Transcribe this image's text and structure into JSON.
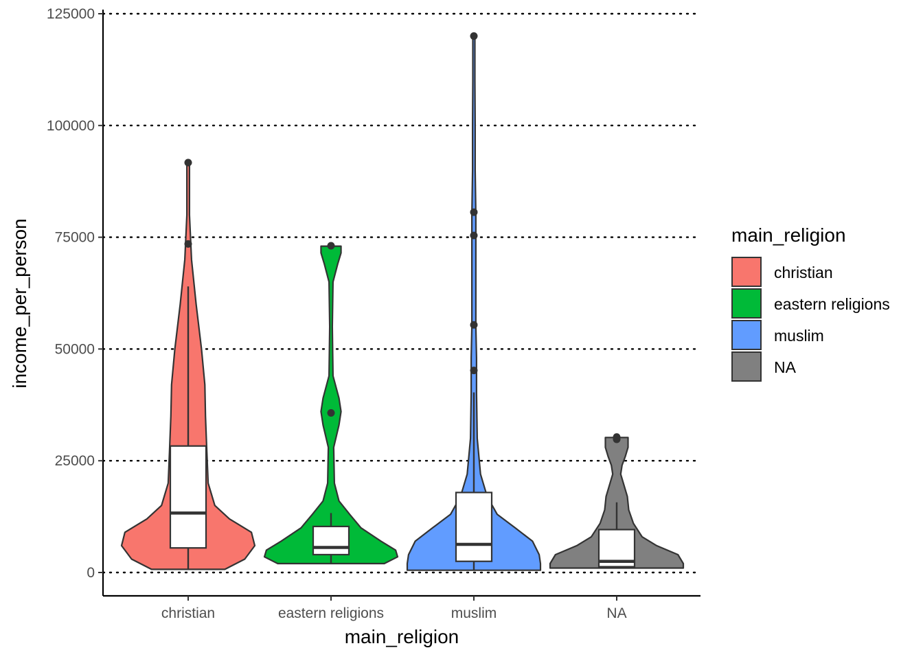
{
  "chart_data": {
    "type": "violin",
    "xlabel": "main_religion",
    "ylabel": "income_per_person",
    "ylim": [
      -5500,
      125000
    ],
    "yticks": [
      0,
      25000,
      50000,
      75000,
      100000,
      125000
    ],
    "ytick_labels": [
      "0",
      "25000",
      "50000",
      "75000",
      "100000",
      "125000"
    ],
    "grid": "horizontal dotted",
    "categories": [
      "christian",
      "eastern religions",
      "muslim",
      "NA"
    ],
    "colors": [
      "#F8766D",
      "#00BA38",
      "#619CFF",
      "#808080"
    ],
    "legend": {
      "title": "main_religion",
      "position": "right",
      "entries": [
        "christian",
        "eastern religions",
        "muslim",
        "NA"
      ]
    },
    "series": [
      {
        "name": "christian",
        "violin_profile": [
          [
            700,
            0.55
          ],
          [
            3000,
            0.85
          ],
          [
            6000,
            1.0
          ],
          [
            9000,
            0.95
          ],
          [
            12000,
            0.62
          ],
          [
            15000,
            0.4
          ],
          [
            20000,
            0.3
          ],
          [
            27000,
            0.28
          ],
          [
            35000,
            0.26
          ],
          [
            42000,
            0.25
          ],
          [
            50000,
            0.2
          ],
          [
            60000,
            0.12
          ],
          [
            70000,
            0.05
          ],
          [
            80000,
            0.02
          ],
          [
            91700,
            0.02
          ]
        ],
        "box": {
          "q1": 5500,
          "median": 13300,
          "q3": 28300,
          "whisker_low": 700,
          "whisker_high": 64000
        },
        "outliers": [
          73500,
          91700
        ]
      },
      {
        "name": "eastern religions",
        "violin_profile": [
          [
            2000,
            0.8
          ],
          [
            3500,
            1.0
          ],
          [
            5000,
            0.97
          ],
          [
            7000,
            0.75
          ],
          [
            10000,
            0.45
          ],
          [
            13000,
            0.28
          ],
          [
            16000,
            0.12
          ],
          [
            20000,
            0.05
          ],
          [
            28000,
            0.04
          ],
          [
            33000,
            0.12
          ],
          [
            36000,
            0.15
          ],
          [
            39000,
            0.12
          ],
          [
            44000,
            0.03
          ],
          [
            55000,
            0.02
          ],
          [
            65000,
            0.03
          ],
          [
            69000,
            0.1
          ],
          [
            71500,
            0.15
          ],
          [
            73000,
            0.15
          ]
        ],
        "box": {
          "q1": 4000,
          "median": 5600,
          "q3": 10300,
          "whisker_low": 2000,
          "whisker_high": 13300
        },
        "outliers": [
          35700,
          73100
        ]
      },
      {
        "name": "muslim",
        "violin_profile": [
          [
            500,
            1.0
          ],
          [
            2000,
            1.0
          ],
          [
            4000,
            0.98
          ],
          [
            7000,
            0.88
          ],
          [
            10000,
            0.62
          ],
          [
            13000,
            0.35
          ],
          [
            17000,
            0.2
          ],
          [
            22000,
            0.1
          ],
          [
            30000,
            0.05
          ],
          [
            40000,
            0.04
          ],
          [
            48000,
            0.04
          ],
          [
            55000,
            0.03
          ],
          [
            65000,
            0.03
          ],
          [
            75000,
            0.03
          ],
          [
            80000,
            0.03
          ],
          [
            90000,
            0.02
          ],
          [
            100000,
            0.02
          ],
          [
            110000,
            0.015
          ],
          [
            120000,
            0.015
          ]
        ],
        "box": {
          "q1": 2500,
          "median": 6300,
          "q3": 17900,
          "whisker_low": 600,
          "whisker_high": 40300
        },
        "outliers": [
          45200,
          55400,
          75400,
          80600,
          120000
        ]
      },
      {
        "name": "NA",
        "violin_profile": [
          [
            1000,
            1.0
          ],
          [
            2000,
            1.0
          ],
          [
            4000,
            0.92
          ],
          [
            6000,
            0.6
          ],
          [
            8000,
            0.38
          ],
          [
            11000,
            0.25
          ],
          [
            14000,
            0.18
          ],
          [
            17000,
            0.16
          ],
          [
            20000,
            0.1
          ],
          [
            22000,
            0.06
          ],
          [
            24000,
            0.08
          ],
          [
            26000,
            0.13
          ],
          [
            28000,
            0.17
          ],
          [
            30200,
            0.17
          ]
        ],
        "box": {
          "q1": 1300,
          "median": 2500,
          "q3": 9600,
          "whisker_low": 1000,
          "whisker_high": 15700
        },
        "outliers": [
          29800,
          30300
        ]
      }
    ]
  }
}
